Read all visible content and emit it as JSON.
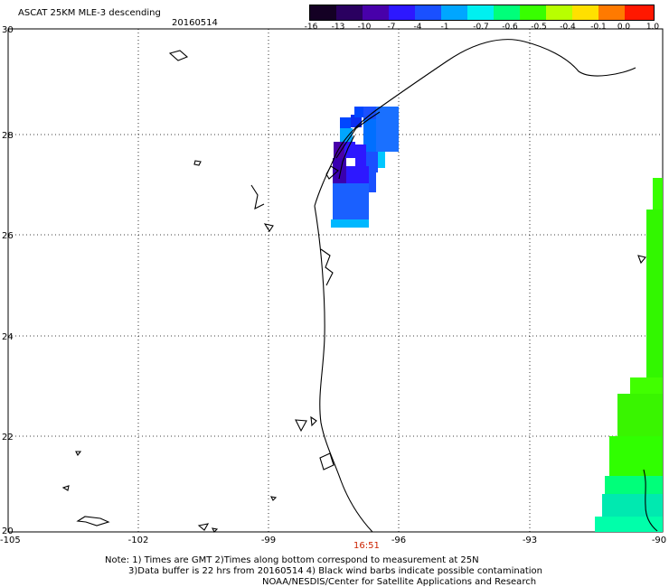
{
  "header": {
    "title": "ASCAT 25KM MLE-3 descending",
    "date": "20160514"
  },
  "colorbar": {
    "labels": [
      "-16",
      "-13",
      "-10",
      "-7",
      "-4",
      "-1",
      "-0.7",
      "-0.6",
      "-0.5",
      "-0.4",
      "-0.1",
      "0.0",
      "1.0"
    ],
    "colors": [
      "#140024",
      "#2a0060",
      "#4800aa",
      "#2d18ff",
      "#1a50ff",
      "#00a6ff",
      "#00f0f0",
      "#00ff7a",
      "#38ff00",
      "#b8ff00",
      "#ffe000",
      "#ff7a00",
      "#ff1800"
    ]
  },
  "map": {
    "latitude_ticks": [
      "30",
      "28",
      "26",
      "24",
      "22",
      "20"
    ],
    "longitude_ticks": [
      "-105",
      "-102",
      "-99",
      "-96",
      "-93",
      "-90"
    ],
    "bottom_time": "16:51",
    "grid": "dotted"
  },
  "footer": {
    "note_line_1": "Note: 1) Times are GMT 2)Times along bottom correspond to measurement at 25N",
    "note_line_2": "3)Data buffer is 22 hrs from 20160514 4) Black wind barbs indicate possible contamination",
    "credit": "NOAA/NESDIS/Center for Satellite Applications and Research"
  },
  "measurement_cells": {
    "north_texas_shore": [
      "#0047ff",
      "#0b2ef2",
      "#1c6fff",
      "#00a6ff",
      "#00c7ff",
      "#4800aa",
      "#2d18ff",
      "#2d18ff",
      "#2d18ff",
      "#1a50ff",
      "#00b8ff"
    ],
    "east_strip": [
      "#38ff00",
      "#32f700",
      "#41ff00",
      "#39f500",
      "#30ff00",
      "#00ff7a",
      "#00e9b0",
      "#00ffaa"
    ]
  }
}
